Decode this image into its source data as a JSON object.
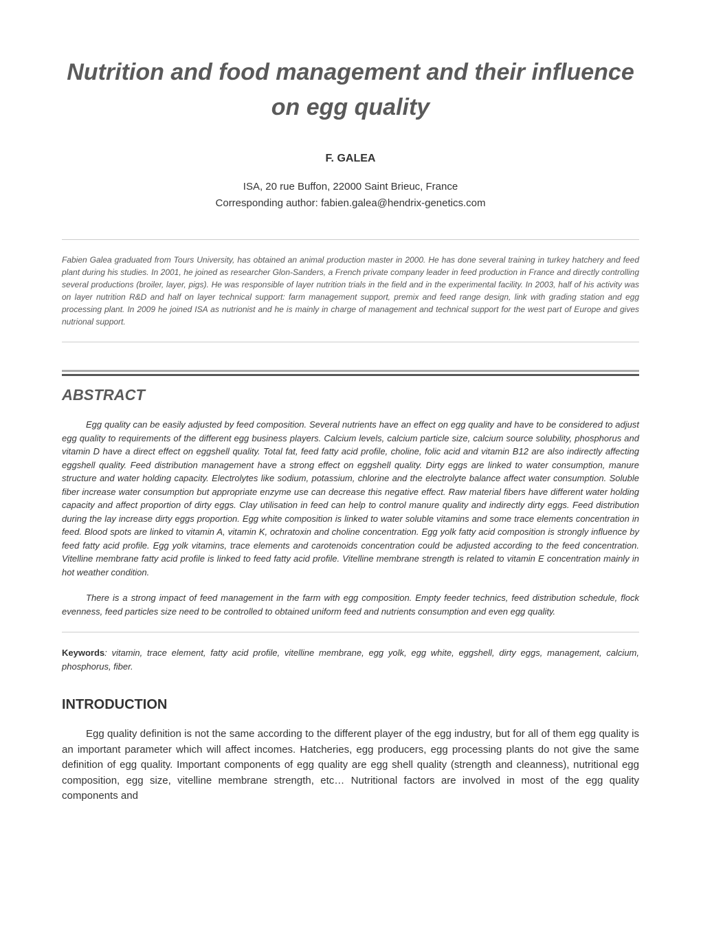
{
  "title": "Nutrition and food management and their influence on egg quality",
  "author": "F. GALEA",
  "affiliation_line1": "ISA, 20 rue Buffon, 22000 Saint Brieuc, France",
  "affiliation_line2": "Corresponding author: fabien.galea@hendrix-genetics.com",
  "bio": "Fabien Galea graduated from Tours University, has obtained an animal production master in 2000. He has done several training in turkey hatchery and feed plant during his studies. In 2001, he joined as researcher Glon-Sanders, a French private company leader in feed production in France and directly controlling several productions (broiler, layer, pigs). He was responsible of layer nutrition trials in the field and in the experimental facility. In 2003, half of his activity was on layer nutrition R&D and half on layer technical support: farm management support, premix and feed range design, link with grading station and egg processing plant. In 2009 he joined ISA as nutrionist and he is mainly in charge of management and technical support for the west part of Europe and gives nutrional support.",
  "abstract_heading": "ABSTRACT",
  "abstract_p1": "Egg quality can be easily adjusted by feed composition. Several nutrients have an effect on egg quality and have to be considered to adjust egg quality to requirements of the different egg business players. Calcium levels, calcium particle size, calcium source solubility, phosphorus and vitamin D have a direct effect on eggshell quality. Total fat, feed fatty acid profile, choline, folic acid and vitamin B12 are also indirectly affecting eggshell quality. Feed distribution management have a strong effect on eggshell quality. Dirty eggs are linked to water consumption, manure structure and water holding capacity. Electrolytes like sodium, potassium, chlorine and the electrolyte balance affect water consumption. Soluble fiber increase water consumption but appropriate enzyme use can decrease this negative effect. Raw material fibers have different water holding capacity and affect proportion of dirty eggs. Clay utilisation in feed can help to control manure quality and indirectly dirty eggs. Feed distribution during the lay increase dirty eggs proportion. Egg white composition is linked to water soluble vitamins and some trace elements concentration in feed. Blood spots are linked to vitamin A, vitamin K, ochratoxin and choline concentration. Egg yolk fatty acid composition is strongly influence by feed fatty acid profile. Egg yolk vitamins, trace elements and carotenoids concentration could be adjusted according to the feed concentration. Vitelline membrane fatty acid profile is linked to feed fatty acid profile. Vitelline membrane strength is related to vitamin E concentration mainly in hot weather condition.",
  "abstract_p2": "There is a strong impact of feed management in the farm with egg composition. Empty feeder technics, feed distribution schedule, flock evenness, feed particles size need to be controlled to obtained uniform feed and nutrients consumption and even egg quality.",
  "keywords_label": "Keywords",
  "keywords_text": ": vitamin, trace element, fatty acid profile, vitelline membrane, egg yolk, egg white, eggshell, dirty eggs, management, calcium, phosphorus, fiber.",
  "intro_heading": "INTRODUCTION",
  "intro_p1": "Egg quality definition is not the same according to the different player of the egg industry, but for all of them egg quality is an important parameter which will affect incomes. Hatcheries, egg producers, egg processing plants do not give the same definition of egg quality. Important components of egg quality are egg shell quality (strength and cleanness), nutritional egg composition, egg size, vitelline membrane strength, etc… Nutritional factors are involved in most of the egg quality components and",
  "colors": {
    "title_color": "#5a5a5a",
    "body_color": "#333333",
    "bio_color": "#555555",
    "divider_color": "#cccccc",
    "section_bar_grey": "#aaaaaa",
    "section_bar_dark": "#555555",
    "background": "#ffffff"
  },
  "typography": {
    "title_fontsize": 34,
    "author_fontsize": 16,
    "affiliation_fontsize": 15,
    "bio_fontsize": 12,
    "heading_fontsize": 22,
    "abstract_fontsize": 13,
    "body_fontsize": 15
  }
}
